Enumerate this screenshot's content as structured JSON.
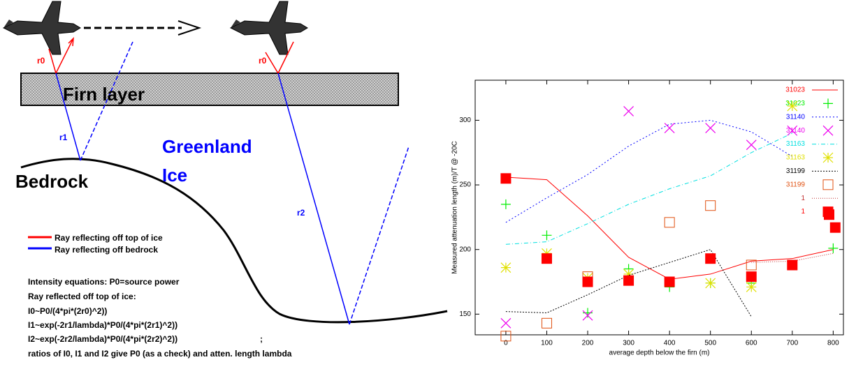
{
  "diagram": {
    "firn_label": "Firn layer",
    "ice_label": [
      "Greenland",
      "Ice"
    ],
    "bedrock_label": "Bedrock",
    "ray_labels": [
      "r0",
      "r0",
      "r1",
      "r2"
    ],
    "legend": [
      "Ray reflecting off top of ice",
      "Ray reflecting off bedrock"
    ],
    "equations": [
      "Intensity equations: P0=source power",
      "Ray reflected off top of ice:",
      "I0~P0/(4*pi*(2r0)^2))",
      "I1~exp(-2r1/lambda)*P0/(4*pi*(2r1)^2))",
      "I2~exp(-2r2/lambda)*P0/(4*pi*(2r2)^2))",
      "ratios of I0, I1 and I2 give P0 (as a check) and atten. length lambda"
    ],
    "stray_mark": ";"
  },
  "chart_data": {
    "type": "line",
    "xlabel": "average depth below the firn (m)",
    "ylabel": "Measured attenuation length (m)/T @ -20C",
    "xlim": [
      -75,
      825
    ],
    "ylim": [
      134,
      331
    ],
    "xticks": [
      0,
      100,
      200,
      300,
      400,
      500,
      600,
      700,
      800
    ],
    "yticks": [
      150,
      200,
      250,
      300
    ],
    "legend": "upper right",
    "series": [
      {
        "name": "31023",
        "color": "#ff0000",
        "style": "line",
        "dash": "none",
        "x": [
          0,
          100,
          200,
          300,
          400,
          500,
          600,
          700,
          800
        ],
        "values": [
          256,
          254,
          226,
          194,
          177,
          181,
          191,
          193,
          200
        ]
      },
      {
        "name": "31023",
        "color": "#00ee00",
        "style": "points",
        "marker": "plus",
        "x": [
          0,
          100,
          200,
          300,
          400,
          500,
          600,
          800
        ],
        "values": [
          235,
          211,
          151,
          185,
          171,
          174,
          174,
          201
        ]
      },
      {
        "name": "31140",
        "color": "#0000ff",
        "style": "line",
        "dash": "2,3",
        "x": [
          0,
          100,
          200,
          300,
          400,
          500,
          600,
          700
        ],
        "values": [
          221,
          240,
          258,
          280,
          297,
          300,
          291,
          272
        ]
      },
      {
        "name": "31140",
        "color": "#ee00ee",
        "style": "points",
        "marker": "cross",
        "x": [
          0,
          200,
          300,
          400,
          500,
          600,
          700
        ],
        "values": [
          143,
          149,
          307,
          294,
          294,
          281,
          292
        ]
      },
      {
        "name": "31163",
        "color": "#00e0e0",
        "style": "line",
        "dash": "6,3,1,3",
        "x": [
          0,
          100,
          200,
          300,
          400,
          500,
          600,
          700
        ],
        "values": [
          204,
          206,
          220,
          235,
          247,
          257,
          275,
          290
        ]
      },
      {
        "name": "31163",
        "color": "#e0e000",
        "style": "points",
        "marker": "star",
        "x": [
          0,
          100,
          200,
          300,
          500,
          600,
          700
        ],
        "values": [
          186,
          197,
          178,
          181,
          174,
          171,
          311
        ]
      },
      {
        "name": "31199",
        "color": "#000000",
        "style": "line",
        "dash": "2,2",
        "x": [
          0,
          100,
          200,
          300,
          400,
          500,
          600
        ],
        "values": [
          152,
          151,
          165,
          180,
          190,
          200,
          148
        ]
      },
      {
        "name": "31199",
        "color": "#e05010",
        "style": "points",
        "marker": "box",
        "x": [
          0,
          100,
          200,
          400,
          500,
          600
        ],
        "values": [
          133,
          143,
          179,
          221,
          234,
          188
        ]
      },
      {
        "name": "1",
        "color": "#c03030",
        "style": "line",
        "dash": "1,2",
        "x": [
          600,
          700,
          800
        ],
        "values": [
          190,
          191,
          197
        ]
      },
      {
        "name": "1",
        "color": "#ff0000",
        "style": "points",
        "marker": "filled-box",
        "x": [
          0,
          100,
          200,
          300,
          400,
          500,
          600,
          700,
          790,
          805
        ],
        "values": [
          255,
          193,
          175,
          176,
          175,
          193,
          179,
          188,
          227,
          217
        ]
      }
    ]
  }
}
